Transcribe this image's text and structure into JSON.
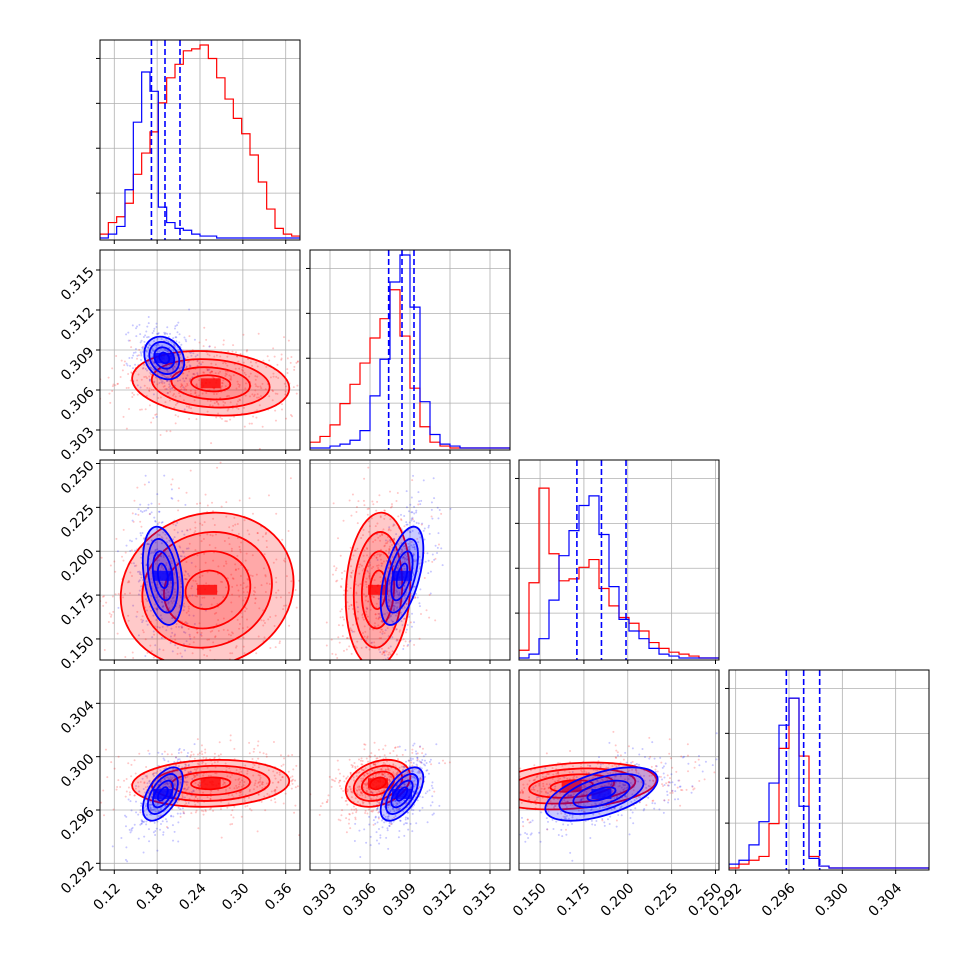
{
  "colors": {
    "series_a": "#ff0000",
    "series_b": "#0000ff",
    "grid": "#b0b0b0",
    "axis": "#000000"
  },
  "chart_data": {
    "type": "corner",
    "title": "",
    "grid": true,
    "series": [
      {
        "color": "#ff0000"
      },
      {
        "color": "#0000ff"
      }
    ],
    "params": [
      {
        "range": [
          0.1,
          0.38
        ],
        "ticks": [
          0.12,
          0.18,
          0.24,
          0.3,
          0.36
        ],
        "tick_labels": [
          "0.12",
          "0.18",
          "0.24",
          "0.30",
          "0.36"
        ]
      },
      {
        "range": [
          0.3015,
          0.3165
        ],
        "ticks": [
          0.303,
          0.306,
          0.309,
          0.312,
          0.315
        ],
        "tick_labels": [
          "0.303",
          "0.306",
          "0.309",
          "0.312",
          "0.315"
        ]
      },
      {
        "range": [
          0.138,
          0.252
        ],
        "ticks": [
          0.15,
          0.175,
          0.2,
          0.225,
          0.25
        ],
        "tick_labels": [
          "0.150",
          "0.175",
          "0.200",
          "0.225",
          "0.250"
        ]
      },
      {
        "range": [
          0.2915,
          0.3065
        ],
        "ticks": [
          0.292,
          0.296,
          0.3,
          0.304
        ],
        "tick_labels": [
          "0.292",
          "0.296",
          "0.300",
          "0.304"
        ]
      }
    ],
    "marginals": [
      {
        "edges_range": [
          0.1,
          0.38
        ],
        "series_a": [
          0.02,
          0.08,
          0.11,
          0.18,
          0.33,
          0.44,
          0.55,
          0.7,
          0.83,
          0.9,
          0.97,
          0.98,
          1.0,
          0.93,
          0.83,
          0.72,
          0.62,
          0.54,
          0.43,
          0.29,
          0.15,
          0.05,
          0.02,
          0.01
        ],
        "series_b": [
          0.0,
          0.02,
          0.06,
          0.25,
          0.6,
          0.86,
          0.76,
          0.16,
          0.08,
          0.05,
          0.04,
          0.02,
          0.01,
          0.01,
          0.0,
          0.0,
          0.0,
          0.0,
          0.0,
          0.0,
          0.0,
          0.0,
          0.0,
          0.0
        ],
        "quantiles_b": [
          0.172,
          0.191,
          0.212
        ]
      },
      {
        "edges_range": [
          0.3015,
          0.3165
        ],
        "series_a": [
          0.03,
          0.06,
          0.12,
          0.23,
          0.33,
          0.44,
          0.57,
          0.67,
          0.82,
          0.58,
          0.31,
          0.11,
          0.03,
          0.01,
          0.0,
          0.0,
          0.0,
          0.0,
          0.0,
          0.0
        ],
        "series_b": [
          0.0,
          0.0,
          0.01,
          0.02,
          0.04,
          0.09,
          0.27,
          0.46,
          0.86,
          1.0,
          0.73,
          0.24,
          0.07,
          0.02,
          0.01,
          0.0,
          0.0,
          0.0,
          0.0,
          0.0
        ],
        "quantiles_b": [
          0.3074,
          0.3084,
          0.3093
        ]
      },
      {
        "edges_range": [
          0.138,
          0.252
        ],
        "series_a": [
          0.04,
          0.39,
          0.88,
          0.54,
          0.4,
          0.41,
          0.47,
          0.51,
          0.36,
          0.27,
          0.21,
          0.18,
          0.14,
          0.08,
          0.05,
          0.03,
          0.02,
          0.01,
          0.0,
          0.0
        ],
        "series_b": [
          0.0,
          0.02,
          0.1,
          0.3,
          0.53,
          0.66,
          0.79,
          0.84,
          0.64,
          0.37,
          0.2,
          0.14,
          0.1,
          0.05,
          0.02,
          0.01,
          0.0,
          0.0,
          0.0,
          0.0
        ],
        "quantiles_b": [
          0.171,
          0.185,
          0.199
        ]
      },
      {
        "edges_range": [
          0.2915,
          0.3065
        ],
        "series_a": [
          0.0,
          0.02,
          0.04,
          0.06,
          0.23,
          0.62,
          0.88,
          0.58,
          0.06,
          0.01,
          0.0,
          0.0,
          0.0,
          0.0,
          0.0,
          0.0,
          0.0,
          0.0,
          0.0,
          0.0
        ],
        "series_b": [
          0.02,
          0.04,
          0.12,
          0.24,
          0.44,
          0.74,
          0.88,
          0.32,
          0.05,
          0.01,
          0.0,
          0.0,
          0.0,
          0.0,
          0.0,
          0.0,
          0.0,
          0.0,
          0.0,
          0.0
        ],
        "quantiles_b": [
          0.2958,
          0.2971,
          0.2983
        ]
      }
    ],
    "pairs": [
      {
        "row": 1,
        "col": 0,
        "a": {
          "mean": [
            0.255,
            0.3065
          ],
          "sd": [
            0.05,
            0.0011
          ],
          "rho": -0.15
        },
        "b": {
          "mean": [
            0.19,
            0.3084
          ],
          "sd": [
            0.014,
            0.0008
          ],
          "rho": -0.2
        }
      },
      {
        "row": 2,
        "col": 0,
        "a": {
          "mean": [
            0.25,
            0.178
          ],
          "sd": [
            0.055,
            0.02
          ],
          "rho": 0.1
        },
        "b": {
          "mean": [
            0.188,
            0.186
          ],
          "sd": [
            0.014,
            0.014
          ],
          "rho": -0.3
        }
      },
      {
        "row": 2,
        "col": 1,
        "a": {
          "mean": [
            0.3066,
            0.178
          ],
          "sd": [
            0.0011,
            0.02
          ],
          "rho": 0.1
        },
        "b": {
          "mean": [
            0.3084,
            0.186
          ],
          "sd": [
            0.0008,
            0.014
          ],
          "rho": 0.55
        }
      },
      {
        "row": 3,
        "col": 0,
        "a": {
          "mean": [
            0.255,
            0.298
          ],
          "sd": [
            0.05,
            0.0008
          ],
          "rho": 0.1
        },
        "b": {
          "mean": [
            0.188,
            0.2972
          ],
          "sd": [
            0.014,
            0.001
          ],
          "rho": 0.55
        }
      },
      {
        "row": 3,
        "col": 1,
        "a": {
          "mean": [
            0.3066,
            0.298
          ],
          "sd": [
            0.0011,
            0.0008
          ],
          "rho": 0.3
        },
        "b": {
          "mean": [
            0.3084,
            0.2972
          ],
          "sd": [
            0.0008,
            0.001
          ],
          "rho": 0.6
        }
      },
      {
        "row": 3,
        "col": 2,
        "a": {
          "mean": [
            0.168,
            0.2978
          ],
          "sd": [
            0.022,
            0.0008
          ],
          "rho": 0.25
        },
        "b": {
          "mean": [
            0.185,
            0.2972
          ],
          "sd": [
            0.016,
            0.001
          ],
          "rho": 0.55
        }
      }
    ]
  }
}
